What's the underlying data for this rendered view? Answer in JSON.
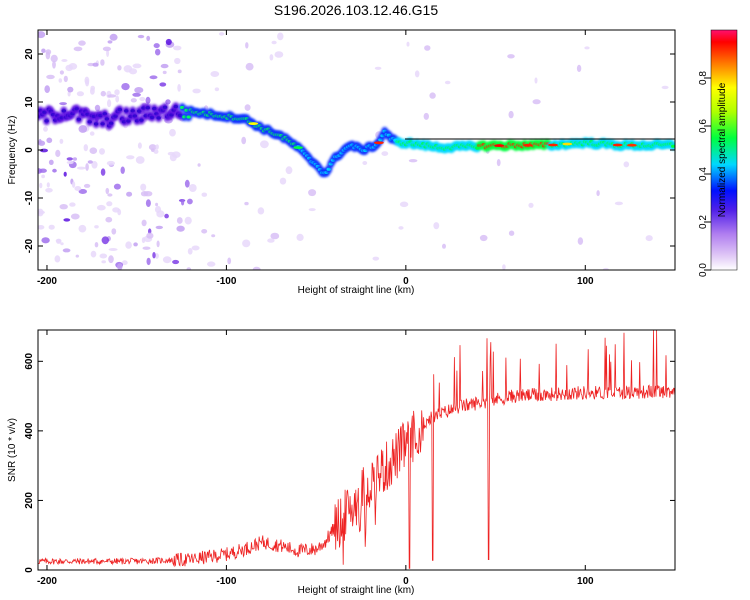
{
  "figure": {
    "title": "S196.2026.103.12.46.G15"
  },
  "chart_data": [
    {
      "type": "heatmap",
      "panel": "spectrogram",
      "xlabel": "Height of straight line (km)",
      "ylabel": "Frequency (Hz)",
      "xlim": [
        -205,
        150
      ],
      "ylim": [
        -25,
        25
      ],
      "x_ticks": [
        -200,
        -100,
        0,
        100
      ],
      "y_ticks": [
        -20,
        -10,
        0,
        10,
        20
      ],
      "ridge": {
        "x": [
          -200,
          -190,
          -180,
          -170,
          -160,
          -150,
          -140,
          -130,
          -120,
          -110,
          -100,
          -90,
          -80,
          -70,
          -60,
          -55,
          -50,
          -45,
          -40,
          -35,
          -30,
          -25,
          -20,
          -15,
          -12,
          -10,
          -5,
          0,
          10,
          20,
          40,
          60,
          80,
          100,
          120,
          150
        ],
        "y": [
          7,
          8,
          7,
          6,
          7,
          7,
          8,
          8,
          8,
          7.5,
          7,
          6.5,
          4.5,
          3,
          0.5,
          -1.5,
          -3,
          -5,
          -2,
          0,
          1,
          0,
          0.5,
          1.5,
          4,
          3,
          1.5,
          1.5,
          1,
          0.5,
          0.8,
          1,
          1,
          1.5,
          1,
          1
        ]
      },
      "colorbar": {
        "label": "Normalized spectral amplitude",
        "range": [
          0,
          1
        ],
        "ticks": [
          "0.0",
          "0.2",
          "0.4",
          "0.6",
          "0.8"
        ]
      }
    },
    {
      "type": "line",
      "panel": "snr",
      "xlabel": "Height of straight line (km)",
      "ylabel": "SNR (10 * v/v)",
      "xlim": [
        -205,
        150
      ],
      "ylim": [
        0,
        690
      ],
      "x_ticks": [
        -200,
        -100,
        0,
        100
      ],
      "y_ticks": [
        0,
        200,
        400,
        600
      ],
      "series": [
        {
          "name": "SNR",
          "color": "#ee2222",
          "envelope": {
            "x": [
              -205,
              -150,
              -120,
              -100,
              -90,
              -80,
              -70,
              -60,
              -50,
              -45,
              -40,
              -35,
              -30,
              -25,
              -20,
              -15,
              -10,
              -5,
              0,
              5,
              10,
              15,
              20,
              30,
              40,
              50,
              60,
              80,
              100,
              120,
              150
            ],
            "y": [
              25,
              25,
              30,
              45,
              60,
              80,
              70,
              55,
              60,
              80,
              120,
              150,
              180,
              220,
              250,
              280,
              300,
              330,
              360,
              390,
              420,
              440,
              450,
              470,
              480,
              490,
              500,
              505,
              510,
              510,
              515
            ]
          },
          "dropouts": [
            {
              "x": 2,
              "y": 5
            },
            {
              "x": 15,
              "y": 28
            },
            {
              "x": 46,
              "y": 30
            }
          ]
        }
      ]
    }
  ]
}
